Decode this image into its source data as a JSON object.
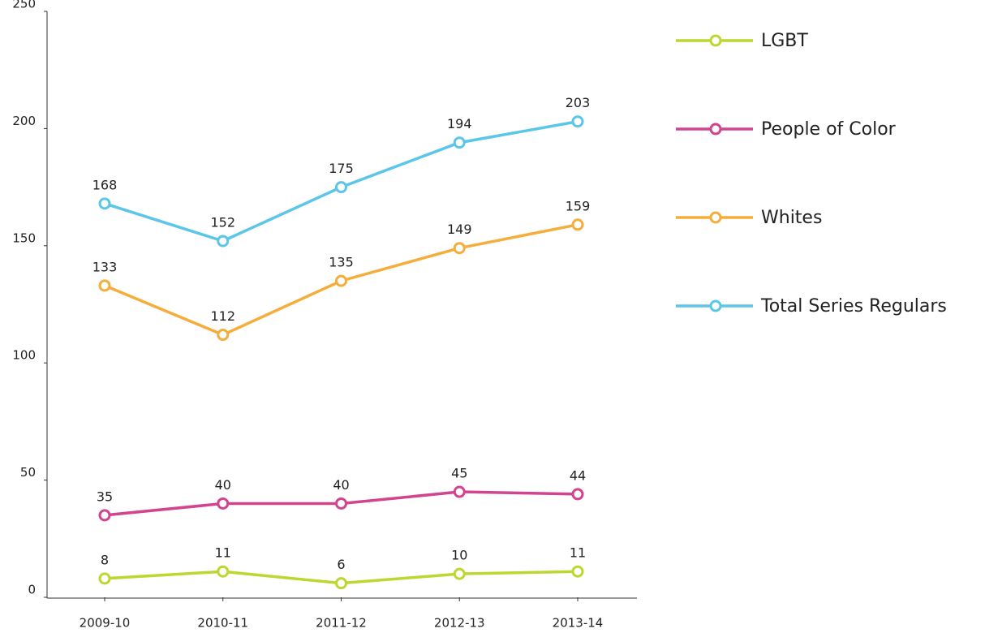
{
  "chart_data": {
    "type": "line",
    "categories": [
      "2009-10",
      "2010-11",
      "2011-12",
      "2012-13",
      "2013-14"
    ],
    "series": [
      {
        "name": "LGBT",
        "color": "#bed630",
        "values": [
          8,
          11,
          6,
          10,
          11
        ]
      },
      {
        "name": "People of Color",
        "color": "#d3448f",
        "values": [
          35,
          40,
          40,
          45,
          44
        ]
      },
      {
        "name": "Whites",
        "color": "#f5ad3c",
        "values": [
          133,
          112,
          135,
          149,
          159
        ]
      },
      {
        "name": "Total Series Regulars",
        "color": "#5bc6e8",
        "values": [
          168,
          152,
          175,
          194,
          203
        ]
      }
    ],
    "ylim": [
      0,
      250
    ],
    "yticks": [
      0,
      50,
      100,
      150,
      200,
      250
    ],
    "legend": "right"
  }
}
